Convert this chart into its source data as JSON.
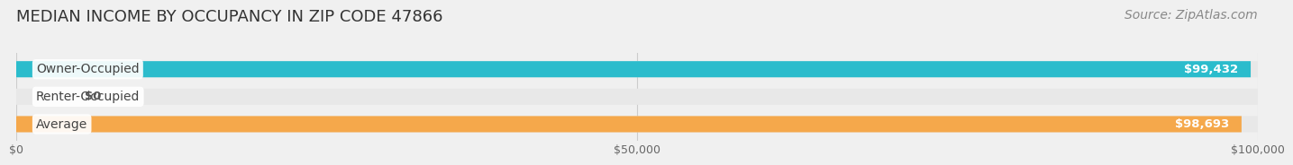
{
  "title": "MEDIAN INCOME BY OCCUPANCY IN ZIP CODE 47866",
  "source": "Source: ZipAtlas.com",
  "categories": [
    "Owner-Occupied",
    "Renter-Occupied",
    "Average"
  ],
  "values": [
    99432,
    0,
    98693
  ],
  "bar_colors": [
    "#2bbccc",
    "#b8a0c8",
    "#f5a84b"
  ],
  "label_colors": [
    "#2bbccc",
    "#b8a0c8",
    "#f5a84b"
  ],
  "value_labels": [
    "$99,432",
    "$0",
    "$98,693"
  ],
  "xlim": [
    0,
    100000
  ],
  "xticks": [
    0,
    50000,
    100000
  ],
  "xtick_labels": [
    "$0",
    "$50,000",
    "$100,000"
  ],
  "background_color": "#f0f0f0",
  "bar_background": "#e8e8e8",
  "bar_height": 0.55,
  "title_fontsize": 13,
  "source_fontsize": 10,
  "label_fontsize": 10,
  "value_fontsize": 9.5
}
